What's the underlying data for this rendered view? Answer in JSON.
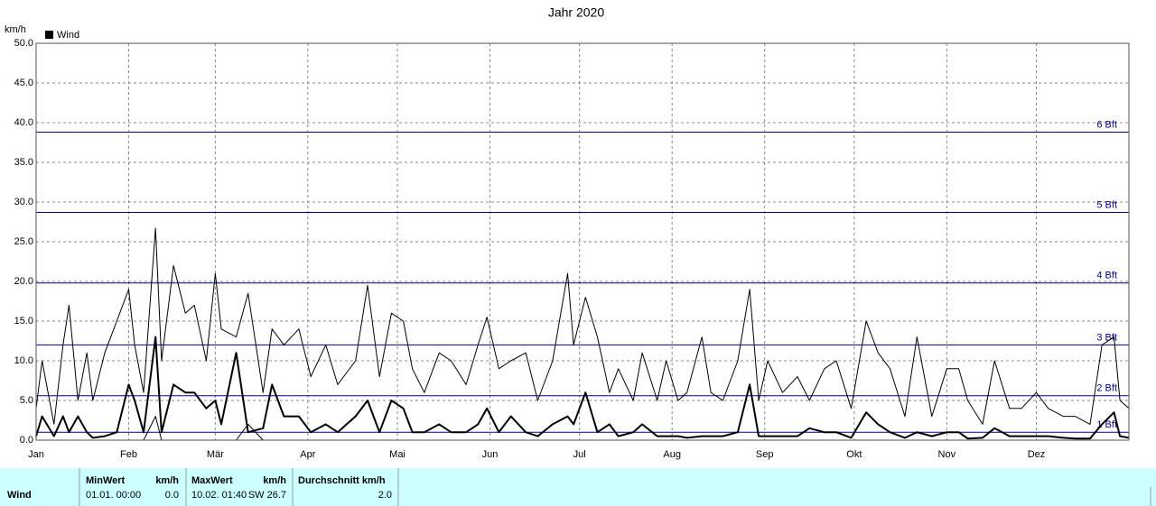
{
  "chart_data": {
    "type": "line",
    "title": "Jahr 2020",
    "y_label": "km/h",
    "xlim": [
      0,
      366
    ],
    "xticks": [
      {
        "value": 0,
        "label": "Jan"
      },
      {
        "value": 31,
        "label": "Feb"
      },
      {
        "value": 60,
        "label": "Mär"
      },
      {
        "value": 91,
        "label": "Apr"
      },
      {
        "value": 121,
        "label": "Mai"
      },
      {
        "value": 152,
        "label": "Jun"
      },
      {
        "value": 182,
        "label": "Jul"
      },
      {
        "value": 213,
        "label": "Aug"
      },
      {
        "value": 244,
        "label": "Sep"
      },
      {
        "value": 274,
        "label": "Okt"
      },
      {
        "value": 305,
        "label": "Nov"
      },
      {
        "value": 335,
        "label": "Dez"
      }
    ],
    "ylim": [
      0,
      50
    ],
    "yticks": [
      {
        "value": 0,
        "label": "0.0"
      },
      {
        "value": 5,
        "label": "5.0"
      },
      {
        "value": 10,
        "label": "10.0"
      },
      {
        "value": 15,
        "label": "15.0"
      },
      {
        "value": 20,
        "label": "20.0"
      },
      {
        "value": 25,
        "label": "25.0"
      },
      {
        "value": 30,
        "label": "30.0"
      },
      {
        "value": 35,
        "label": "35.0"
      },
      {
        "value": 40,
        "label": "40.0"
      },
      {
        "value": 45,
        "label": "45.0"
      },
      {
        "value": 50,
        "label": "50.0"
      }
    ],
    "grid": true,
    "reference_lines": [
      {
        "value": 1,
        "label": "1 Bft"
      },
      {
        "value": 5.6,
        "label": "2 Bft"
      },
      {
        "value": 12,
        "label": "3 Bft"
      },
      {
        "value": 19.8,
        "label": "4 Bft"
      },
      {
        "value": 28.7,
        "label": "5 Bft"
      },
      {
        "value": 38.8,
        "label": "6 Bft"
      }
    ],
    "reference_color": "#000080",
    "x": [
      0,
      2,
      6,
      9,
      11,
      14,
      17,
      19,
      23,
      27,
      31,
      33,
      36,
      40,
      42,
      46,
      50,
      53,
      57,
      60,
      62,
      67,
      71,
      76,
      79,
      83,
      88,
      92,
      97,
      101,
      107,
      111,
      115,
      119,
      123,
      126,
      130,
      135,
      139,
      144,
      148,
      151,
      155,
      159,
      164,
      168,
      173,
      178,
      180,
      184,
      188,
      192,
      195,
      200,
      203,
      208,
      211,
      215,
      218,
      223,
      226,
      230,
      235,
      239,
      242,
      245,
      250,
      255,
      259,
      264,
      268,
      273,
      278,
      282,
      286,
      291,
      295,
      300,
      305,
      309,
      312,
      317,
      321,
      326,
      330,
      335,
      339,
      344,
      348,
      353,
      357,
      361,
      363,
      366
    ],
    "series": [
      {
        "name": "Wind",
        "color": "#000000",
        "width": 2,
        "values": [
          0.5,
          3,
          0.5,
          3,
          1,
          3,
          1,
          0.3,
          0.5,
          1,
          7,
          5,
          1,
          13,
          1,
          7,
          6,
          6,
          4,
          5,
          2,
          11,
          1,
          1.5,
          7,
          3,
          3,
          1,
          2,
          1,
          3,
          5,
          1,
          5,
          4,
          1,
          1,
          2,
          1,
          1,
          2,
          4,
          1,
          3,
          1,
          0.5,
          2,
          3,
          2,
          6,
          1,
          2,
          0.5,
          1,
          2,
          0.5,
          0.5,
          0.5,
          0.3,
          0.5,
          0.5,
          0.5,
          1,
          7,
          0.5,
          0.5,
          0.5,
          0.5,
          1.5,
          1,
          1,
          0.3,
          3.5,
          2,
          1,
          0.3,
          1,
          0.5,
          1,
          1,
          0.2,
          0.3,
          1.5,
          0.5,
          0.5,
          0.5,
          0.5,
          0.3,
          0.2,
          0.2,
          2,
          3.5,
          0.5,
          0.3
        ]
      },
      {
        "color": "#000000",
        "width": 1,
        "values": [
          4,
          10,
          2,
          12,
          17,
          5,
          11,
          5,
          11,
          15,
          19,
          12,
          6,
          26.7,
          10,
          22,
          16,
          17,
          10,
          21,
          14,
          13,
          18.5,
          6,
          14,
          12,
          14,
          8,
          12,
          7,
          10,
          19.5,
          8,
          16,
          15,
          9,
          6,
          11,
          10,
          7,
          12,
          15.5,
          9,
          10,
          11,
          5,
          10,
          21,
          12,
          18,
          13,
          6,
          9,
          5,
          11,
          5,
          10,
          5,
          6,
          13,
          6,
          5,
          10,
          19,
          5,
          10,
          6,
          8,
          5,
          9,
          10,
          4,
          15,
          11,
          9,
          3,
          13,
          3,
          9,
          9,
          5,
          2,
          10,
          4,
          4,
          6,
          4,
          3,
          3,
          2,
          12,
          13,
          5,
          4
        ]
      },
      {
        "color": "#000000",
        "width": 1,
        "values": [
          0,
          0,
          0,
          0,
          0,
          0,
          0,
          0,
          0,
          0,
          0,
          0,
          0,
          3,
          0,
          0,
          0,
          0,
          0,
          0,
          0,
          0,
          2,
          0,
          0,
          0,
          0,
          0,
          0,
          0,
          0,
          0,
          0,
          0,
          0,
          0,
          0,
          0,
          0,
          0,
          0,
          0,
          0,
          0,
          0,
          0,
          0,
          0,
          0,
          0,
          0,
          0,
          0,
          0,
          0,
          0,
          0,
          0,
          0,
          0,
          0,
          0,
          0,
          0,
          0,
          0,
          0,
          0,
          0,
          0,
          0,
          0,
          0,
          0,
          0,
          0,
          0,
          0,
          0,
          0,
          0,
          0,
          0,
          0,
          0,
          0,
          0,
          0,
          0,
          0,
          0,
          0,
          0,
          0
        ]
      }
    ]
  },
  "table": {
    "row_label": "Wind",
    "columns": [
      {
        "header": "MinWert",
        "unit": "km/h",
        "time": "01.01.  00:00",
        "value": "0.0"
      },
      {
        "header": "MaxWert",
        "unit": "km/h",
        "time": "10.02.  01:40",
        "value": "SW 26.7"
      },
      {
        "header": "Durchschnitt km/h",
        "value": "2.0"
      }
    ]
  }
}
